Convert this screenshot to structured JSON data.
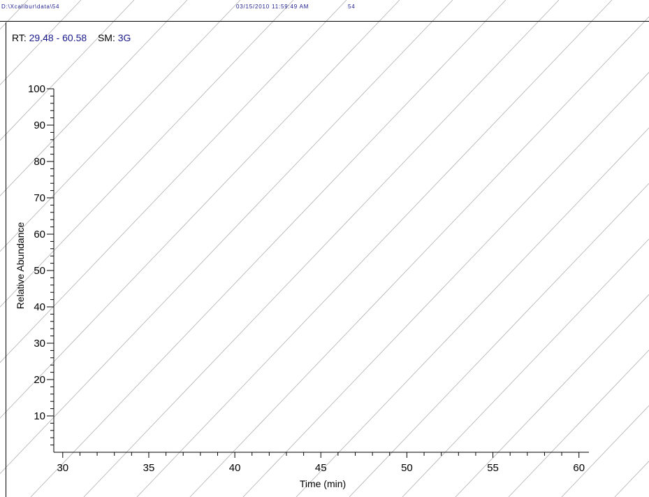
{
  "header": {
    "file_path": "D:\\Xcalibur\\data\\54",
    "timestamp": "03/15/2010 11:59:49 AM",
    "sample_id": "54"
  },
  "info": {
    "rt_label": "RT:",
    "rt_value": "29.48 - 60.58",
    "sm_label": "SM:",
    "sm_value": "3G"
  },
  "colors": {
    "header_text": "#1a1a8c",
    "hatch": "#b0b0b0",
    "axis": "#000000"
  },
  "chart_data": {
    "type": "line",
    "xlabel": "Time (min)",
    "ylabel": "Relative Abundance",
    "xlim": [
      29.48,
      60.58
    ],
    "ylim": [
      0,
      100
    ],
    "x_ticks": [
      30,
      35,
      40,
      45,
      50,
      55,
      60
    ],
    "x_minor_step": 1,
    "y_ticks": [
      10,
      20,
      30,
      40,
      50,
      60,
      70,
      80,
      90,
      100
    ],
    "y_minor_step": 2,
    "series": [],
    "grid": false,
    "background_pattern": "diagonal-hatch"
  }
}
